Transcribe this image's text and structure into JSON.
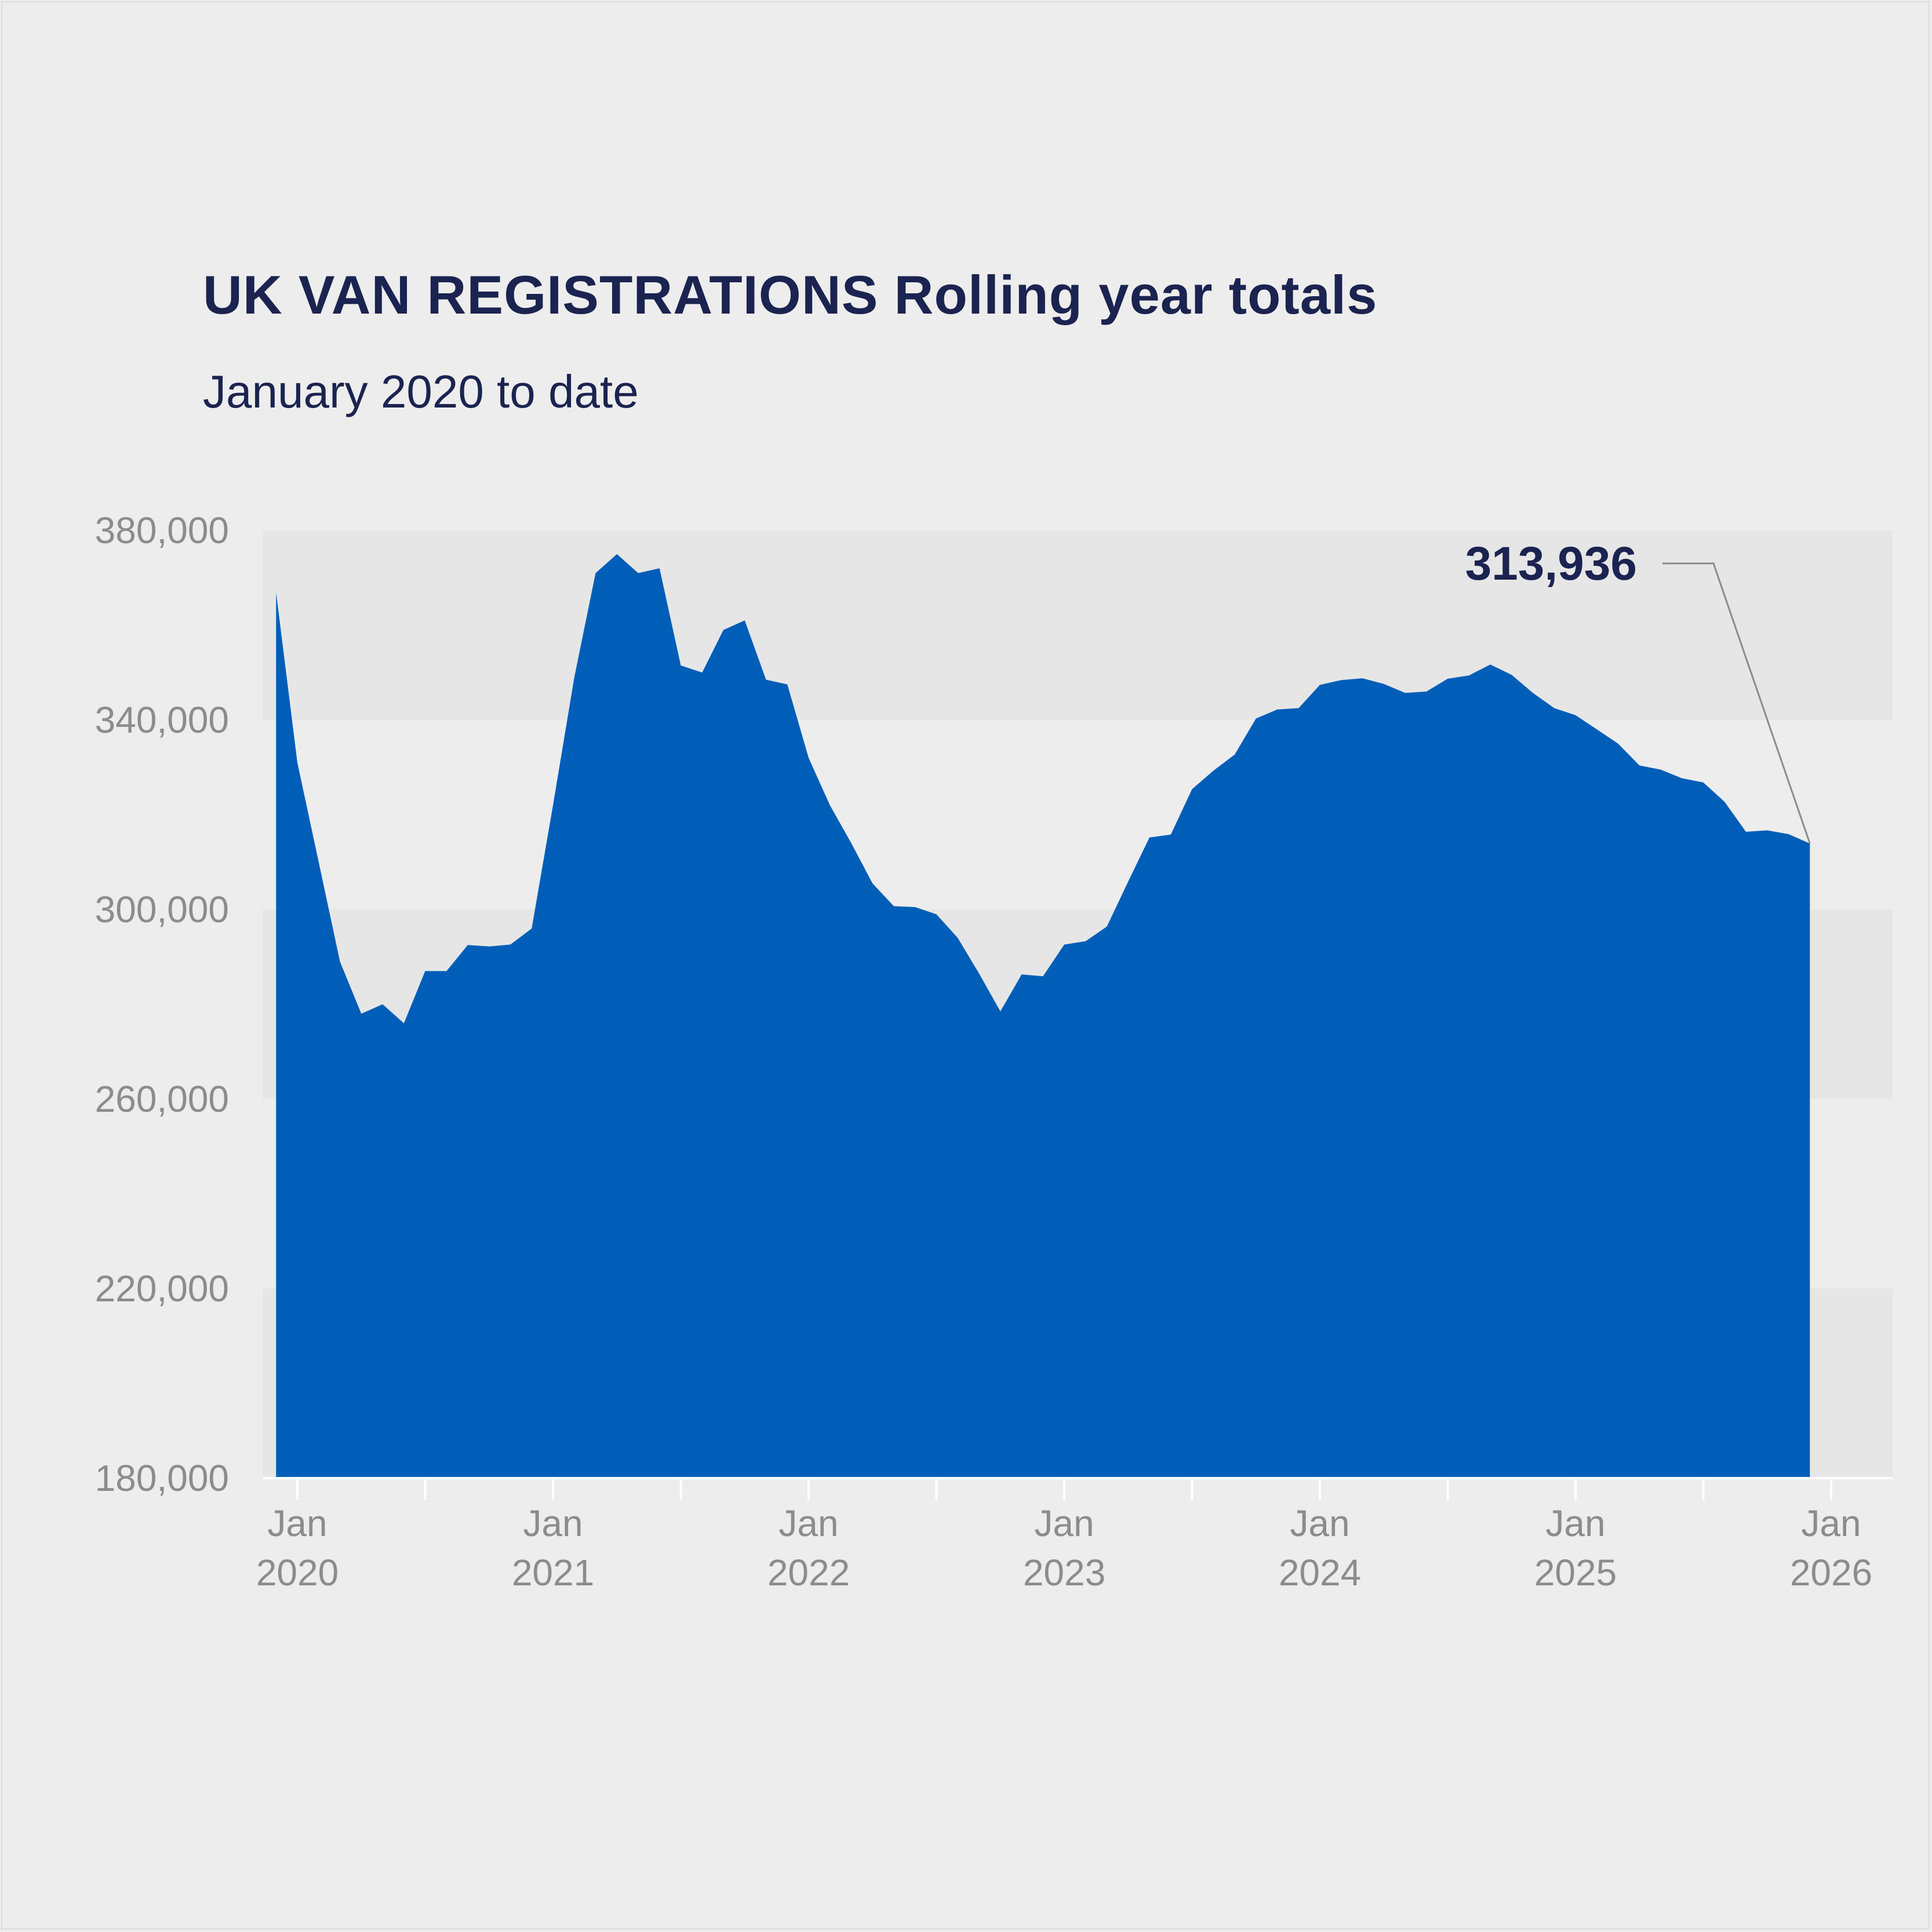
{
  "colors": {
    "background": "#ededed",
    "band": "#e6e6e6",
    "area": "#005eb8",
    "title": "#1b2350",
    "axis_text": "#8c8c8c",
    "leader": "#8c8c8c"
  },
  "chart_data": {
    "type": "area",
    "title": "UK VAN REGISTRATIONS Rolling year totals",
    "subtitle": "January 2020 to date",
    "xlabel": "",
    "ylabel": "",
    "ylim": [
      180000,
      380000
    ],
    "yticks": [
      180000,
      220000,
      260000,
      300000,
      340000,
      380000
    ],
    "ytick_labels": [
      "180,000",
      "220,000",
      "260,000",
      "300,000",
      "340,000",
      "380,000"
    ],
    "xlim": [
      "2019-12",
      "2026-01"
    ],
    "xticks": [
      {
        "month": "2020-01",
        "line1": "Jan",
        "line2": "2020"
      },
      {
        "month": "2021-01",
        "line1": "Jan",
        "line2": "2021"
      },
      {
        "month": "2022-01",
        "line1": "Jan",
        "line2": "2022"
      },
      {
        "month": "2023-01",
        "line1": "Jan",
        "line2": "2023"
      },
      {
        "month": "2024-01",
        "line1": "Jan",
        "line2": "2024"
      },
      {
        "month": "2025-01",
        "line1": "Jan",
        "line2": "2025"
      },
      {
        "month": "2026-01",
        "line1": "Jan",
        "line2": "2026"
      }
    ],
    "grid": "alternating horizontal bands",
    "legend": "none",
    "annotation": {
      "text": "313,936",
      "month": "2025-12",
      "value": 313936
    },
    "series": [
      {
        "months": [
          "2019-12",
          "2020-01",
          "2020-02",
          "2020-03",
          "2020-04",
          "2020-05",
          "2020-06",
          "2020-07",
          "2020-08",
          "2020-09",
          "2020-10",
          "2020-11",
          "2020-12",
          "2021-01",
          "2021-02",
          "2021-03",
          "2021-04",
          "2021-05",
          "2021-06",
          "2021-07",
          "2021-08",
          "2021-09",
          "2021-10",
          "2021-11",
          "2021-12",
          "2022-01",
          "2022-02",
          "2022-03",
          "2022-04",
          "2022-05",
          "2022-06",
          "2022-07",
          "2022-08",
          "2022-09",
          "2022-10",
          "2022-11",
          "2022-12",
          "2023-01",
          "2023-02",
          "2023-03",
          "2023-04",
          "2023-05",
          "2023-06",
          "2023-07",
          "2023-08",
          "2023-09",
          "2023-10",
          "2023-11",
          "2023-12",
          "2024-01",
          "2024-02",
          "2024-03",
          "2024-04",
          "2024-05",
          "2024-06",
          "2024-07",
          "2024-08",
          "2024-09",
          "2024-10",
          "2024-11",
          "2024-12",
          "2025-01",
          "2025-02",
          "2025-03",
          "2025-04",
          "2025-05",
          "2025-06",
          "2025-07",
          "2025-08",
          "2025-09",
          "2025-10",
          "2025-11",
          "2025-12"
        ],
        "values": [
          366900,
          331000,
          310000,
          289000,
          278000,
          280000,
          276000,
          287000,
          287000,
          292500,
          292200,
          292600,
          296000,
          322000,
          349000,
          371000,
          375000,
          371000,
          372000,
          351500,
          350000,
          359000,
          361000,
          348500,
          347500,
          332000,
          322000,
          314000,
          305500,
          300700,
          300500,
          299000,
          294000,
          286500,
          278500,
          286300,
          285900,
          292600,
          293300,
          296400,
          305900,
          315200,
          315800,
          325400,
          329300,
          332700,
          340300,
          342200,
          342500,
          347400,
          348400,
          348800,
          347600,
          345700,
          346000,
          348700,
          349400,
          351700,
          349500,
          345700,
          342500,
          341000,
          338000,
          335000,
          330400,
          329500,
          327700,
          326800,
          322700,
          316400,
          316700,
          315900,
          313936
        ]
      }
    ]
  }
}
